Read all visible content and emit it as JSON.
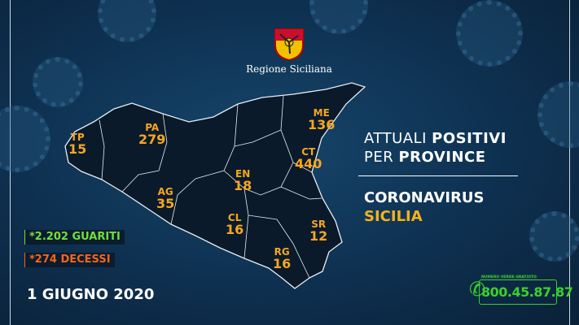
{
  "header": {
    "region_name": "Regione Siciliana"
  },
  "title": {
    "line1_prefix": "ATTUALI ",
    "line1_bold": "POSITIVI",
    "line2_prefix": "PER ",
    "line2_bold": "PROVINCE"
  },
  "subtitle": {
    "line1": "CORONAVIRUS",
    "line2": "SICILIA"
  },
  "provinces": [
    {
      "code": "TP",
      "value": "15"
    },
    {
      "code": "PA",
      "value": "279"
    },
    {
      "code": "ME",
      "value": "136"
    },
    {
      "code": "CT",
      "value": "440"
    },
    {
      "code": "EN",
      "value": "18"
    },
    {
      "code": "AG",
      "value": "35"
    },
    {
      "code": "CL",
      "value": "16"
    },
    {
      "code": "SR",
      "value": "12"
    },
    {
      "code": "RG",
      "value": "16"
    }
  ],
  "stats": {
    "recovered": "*2.202 GUARITI",
    "deaths": "*274 DECESSI"
  },
  "date": "1 GIUGNO 2020",
  "hotline": {
    "label": "NUMERO VERDE GRATUITO",
    "number": "800.45.87.87",
    "icon": "phone-icon"
  },
  "colors": {
    "background": "#0e3050",
    "province_labels": "#f6a623",
    "recovered": "#6fe03a",
    "deaths": "#f2661c",
    "hotline": "#3bd12a",
    "sicilia": "#f6b21b"
  }
}
